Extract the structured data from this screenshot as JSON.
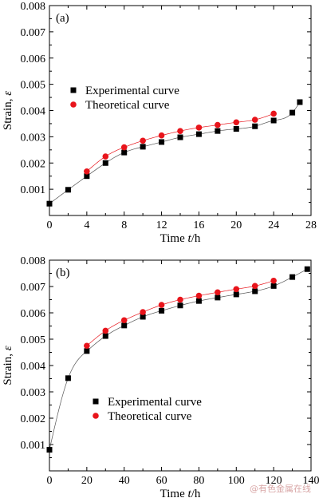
{
  "chart_data": [
    {
      "panel_label": "(a)",
      "type": "scatter",
      "xlabel_prefix": "Time ",
      "xlabel_var": "t",
      "xlabel_suffix": "/h",
      "ylabel_prefix": "Strain, ",
      "ylabel_var": "ε",
      "xlim": [
        0,
        28
      ],
      "ylim": [
        0,
        0.008
      ],
      "xticks": [
        4,
        8,
        12,
        16,
        20,
        24,
        28
      ],
      "xtick_labels": [
        "4",
        "8",
        "12",
        "16",
        "20",
        "24",
        "28"
      ],
      "origin_label": "0",
      "yticks": [
        0.001,
        0.002,
        0.003,
        0.004,
        0.005,
        0.006,
        0.007,
        0.008
      ],
      "ytick_labels": [
        "0.001",
        "0.002",
        "0.003",
        "0.004",
        "0.005",
        "0.006",
        "0.007",
        "0.008"
      ],
      "legend_position": "middle-left",
      "series": [
        {
          "name": "Experimental curve",
          "marker": "square",
          "color": "#000000",
          "x": [
            0,
            2,
            4,
            6,
            8,
            10,
            12,
            14,
            16,
            18,
            20,
            22,
            24,
            26,
            26.8
          ],
          "y": [
            0.00045,
            0.00098,
            0.0015,
            0.002,
            0.0024,
            0.00262,
            0.0028,
            0.00298,
            0.0031,
            0.00322,
            0.0033,
            0.0034,
            0.00362,
            0.00392,
            0.00432
          ]
        },
        {
          "name": "Theoretical curve",
          "marker": "circle",
          "color": "#e8141b",
          "x": [
            4,
            6,
            8,
            10,
            12,
            14,
            16,
            18,
            20,
            22,
            24
          ],
          "y": [
            0.00168,
            0.00225,
            0.0026,
            0.00285,
            0.00305,
            0.00322,
            0.00335,
            0.00345,
            0.00355,
            0.00365,
            0.00388
          ]
        }
      ]
    },
    {
      "panel_label": "(b)",
      "type": "scatter",
      "xlabel_prefix": "Time ",
      "xlabel_var": "t",
      "xlabel_suffix": "/h",
      "ylabel_prefix": "Strain, ",
      "ylabel_var": "ε",
      "xlim": [
        0,
        140
      ],
      "ylim": [
        0,
        0.008
      ],
      "xticks": [
        20,
        40,
        60,
        80,
        100,
        120,
        140
      ],
      "xtick_labels": [
        "20",
        "40",
        "60",
        "80",
        "100",
        "120",
        "140"
      ],
      "origin_label": "0",
      "yticks": [
        0.001,
        0.002,
        0.003,
        0.004,
        0.005,
        0.006,
        0.007,
        0.008
      ],
      "ytick_labels": [
        "0.001",
        "0.002",
        "0.003",
        "0.004",
        "0.005",
        "0.006",
        "0.007",
        "0.008"
      ],
      "legend_position": "bottom-center",
      "series": [
        {
          "name": "Experimental curve",
          "marker": "square",
          "color": "#000000",
          "x": [
            0,
            10,
            20,
            30,
            40,
            50,
            60,
            70,
            80,
            90,
            100,
            110,
            120,
            130,
            138
          ],
          "y": [
            0.0008,
            0.00352,
            0.00455,
            0.00512,
            0.00552,
            0.00585,
            0.00608,
            0.00628,
            0.00645,
            0.00658,
            0.0067,
            0.00682,
            0.00702,
            0.00736,
            0.00766
          ]
        },
        {
          "name": "Theoretical curve",
          "marker": "circle",
          "color": "#e8141b",
          "x": [
            20,
            30,
            40,
            50,
            60,
            70,
            80,
            90,
            100,
            110,
            120
          ],
          "y": [
            0.00475,
            0.00532,
            0.00572,
            0.00603,
            0.0063,
            0.0065,
            0.00665,
            0.00678,
            0.0069,
            0.00702,
            0.00722
          ]
        }
      ]
    }
  ],
  "watermark": "@有色金属在线"
}
